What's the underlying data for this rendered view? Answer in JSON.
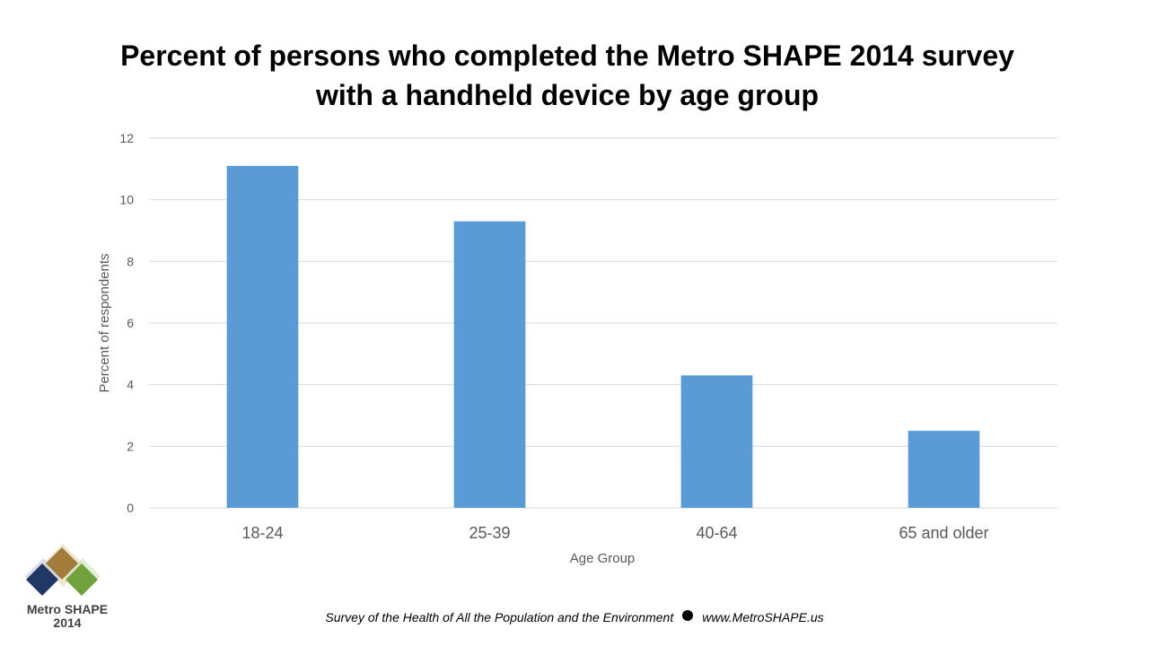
{
  "header": {
    "title_line1": "Percent of persons who completed the Metro SHAPE 2014 survey",
    "title_line2": "with a handheld device by age group"
  },
  "chart_data": {
    "type": "bar",
    "title": "Percent of persons who completed the Metro SHAPE 2014 survey with a handheld device by age group",
    "categories": [
      "18-24",
      "25-39",
      "40-64",
      "65 and older"
    ],
    "values": [
      11.1,
      9.3,
      4.3,
      2.5
    ],
    "xlabel": "Age Group",
    "ylabel": "Percent of respondents",
    "ylim": [
      0,
      12
    ],
    "yticks": [
      0,
      2,
      4,
      6,
      8,
      10,
      12
    ],
    "grid": true,
    "bar_color": "#5b9bd5",
    "grid_color": "#d9d9d9"
  },
  "logo": {
    "line1": "Metro SHAPE",
    "line2": "2014"
  },
  "footer": {
    "text": "Survey of the Health of All the Population and the Environment",
    "url": "www.MetroSHAPE.us"
  }
}
